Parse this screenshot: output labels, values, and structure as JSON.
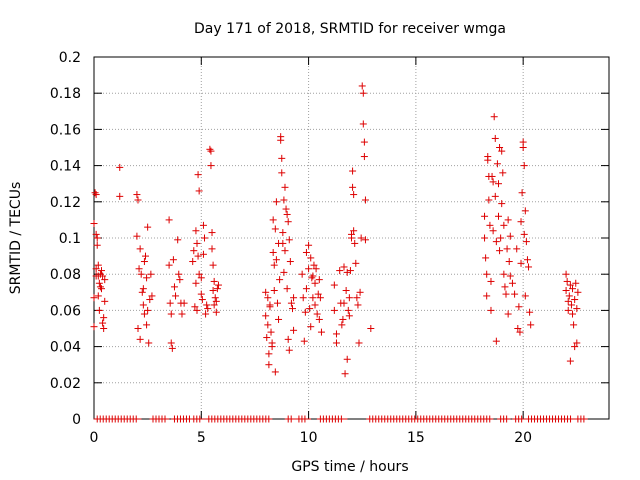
{
  "chart_data": {
    "type": "scatter",
    "title": "Day 171 of 2018, SRMTID for receiver wmga",
    "xlabel": "GPS time / hours",
    "ylabel": "SRMTID / TECUs",
    "xlim": [
      0,
      24
    ],
    "ylim": [
      0,
      0.2
    ],
    "xticks": [
      0,
      5,
      10,
      15,
      20
    ],
    "xtick_labels": [
      "0",
      "5",
      "10",
      "15",
      "20"
    ],
    "yticks": [
      0,
      0.02,
      0.04,
      0.06,
      0.08,
      0.1,
      0.12,
      0.14,
      0.16,
      0.18,
      0.2
    ],
    "ytick_labels": [
      "0",
      "0.02",
      "0.04",
      "0.06",
      "0.08",
      "0.1",
      "0.12",
      "0.14",
      "0.16",
      "0.18",
      "0.2"
    ],
    "grid": true,
    "marker": "+",
    "color": "#dd0000",
    "series": [
      {
        "name": "SRMTID",
        "points": [
          [
            0.0,
            0.108
          ],
          [
            0.0,
            0.051
          ],
          [
            0.0,
            0.067
          ],
          [
            0.05,
            0.125
          ],
          [
            0.1,
            0.124
          ],
          [
            0.1,
            0.102
          ],
          [
            0.1,
            0.083
          ],
          [
            0.1,
            0.079
          ],
          [
            0.15,
            0.1
          ],
          [
            0.15,
            0.096
          ],
          [
            0.2,
            0.085
          ],
          [
            0.2,
            0.079
          ],
          [
            0.2,
            0.068
          ],
          [
            0.25,
            0.075
          ],
          [
            0.25,
            0.06
          ],
          [
            0.3,
            0.08
          ],
          [
            0.3,
            0.073
          ],
          [
            0.35,
            0.082
          ],
          [
            0.35,
            0.072
          ],
          [
            0.4,
            0.079
          ],
          [
            0.4,
            0.053
          ],
          [
            0.45,
            0.056
          ],
          [
            0.45,
            0.05
          ],
          [
            0.5,
            0.077
          ],
          [
            0.5,
            0.065
          ],
          [
            1.2,
            0.139
          ],
          [
            1.2,
            0.123
          ],
          [
            2.0,
            0.124
          ],
          [
            2.0,
            0.101
          ],
          [
            2.05,
            0.121
          ],
          [
            2.05,
            0.05
          ],
          [
            2.1,
            0.083
          ],
          [
            2.15,
            0.094
          ],
          [
            2.15,
            0.044
          ],
          [
            2.2,
            0.08
          ],
          [
            2.25,
            0.07
          ],
          [
            2.3,
            0.072
          ],
          [
            2.3,
            0.063
          ],
          [
            2.35,
            0.087
          ],
          [
            2.35,
            0.058
          ],
          [
            2.4,
            0.09
          ],
          [
            2.45,
            0.078
          ],
          [
            2.45,
            0.052
          ],
          [
            2.5,
            0.106
          ],
          [
            2.5,
            0.06
          ],
          [
            2.55,
            0.042
          ],
          [
            2.6,
            0.066
          ],
          [
            2.65,
            0.08
          ],
          [
            2.7,
            0.068
          ],
          [
            3.5,
            0.11
          ],
          [
            3.5,
            0.085
          ],
          [
            3.55,
            0.064
          ],
          [
            3.6,
            0.058
          ],
          [
            3.6,
            0.042
          ],
          [
            3.65,
            0.039
          ],
          [
            3.7,
            0.088
          ],
          [
            3.75,
            0.073
          ],
          [
            3.8,
            0.068
          ],
          [
            3.9,
            0.099
          ],
          [
            3.95,
            0.08
          ],
          [
            4.0,
            0.077
          ],
          [
            4.05,
            0.064
          ],
          [
            4.1,
            0.058
          ],
          [
            4.2,
            0.064
          ],
          [
            4.6,
            0.087
          ],
          [
            4.65,
            0.093
          ],
          [
            4.7,
            0.062
          ],
          [
            4.75,
            0.075
          ],
          [
            4.75,
            0.104
          ],
          [
            4.8,
            0.097
          ],
          [
            4.8,
            0.06
          ],
          [
            4.85,
            0.135
          ],
          [
            4.85,
            0.09
          ],
          [
            4.9,
            0.126
          ],
          [
            4.9,
            0.08
          ],
          [
            5.0,
            0.078
          ],
          [
            5.0,
            0.069
          ],
          [
            5.05,
            0.066
          ],
          [
            5.1,
            0.091
          ],
          [
            5.1,
            0.107
          ],
          [
            5.15,
            0.1
          ],
          [
            5.2,
            0.058
          ],
          [
            5.25,
            0.063
          ],
          [
            5.3,
            0.061
          ],
          [
            5.4,
            0.149
          ],
          [
            5.45,
            0.148
          ],
          [
            5.45,
            0.14
          ],
          [
            5.5,
            0.103
          ],
          [
            5.5,
            0.094
          ],
          [
            5.55,
            0.085
          ],
          [
            5.55,
            0.071
          ],
          [
            5.6,
            0.076
          ],
          [
            5.6,
            0.063
          ],
          [
            5.65,
            0.067
          ],
          [
            5.7,
            0.065
          ],
          [
            5.7,
            0.059
          ],
          [
            5.75,
            0.072
          ],
          [
            5.8,
            0.074
          ],
          [
            8.0,
            0.07
          ],
          [
            8.0,
            0.057
          ],
          [
            8.05,
            0.045
          ],
          [
            8.1,
            0.067
          ],
          [
            8.1,
            0.052
          ],
          [
            8.15,
            0.036
          ],
          [
            8.15,
            0.03
          ],
          [
            8.2,
            0.063
          ],
          [
            8.2,
            0.062
          ],
          [
            8.25,
            0.048
          ],
          [
            8.3,
            0.042
          ],
          [
            8.3,
            0.04
          ],
          [
            8.35,
            0.092
          ],
          [
            8.35,
            0.11
          ],
          [
            8.4,
            0.085
          ],
          [
            8.4,
            0.071
          ],
          [
            8.45,
            0.105
          ],
          [
            8.45,
            0.026
          ],
          [
            8.5,
            0.088
          ],
          [
            8.5,
            0.12
          ],
          [
            8.55,
            0.064
          ],
          [
            8.6,
            0.097
          ],
          [
            8.6,
            0.055
          ],
          [
            8.65,
            0.077
          ],
          [
            8.7,
            0.156
          ],
          [
            8.7,
            0.154
          ],
          [
            8.75,
            0.144
          ],
          [
            8.75,
            0.136
          ],
          [
            8.8,
            0.097
          ],
          [
            8.8,
            0.103
          ],
          [
            8.85,
            0.121
          ],
          [
            8.85,
            0.081
          ],
          [
            8.9,
            0.128
          ],
          [
            8.9,
            0.093
          ],
          [
            8.95,
            0.116
          ],
          [
            9.0,
            0.113
          ],
          [
            9.0,
            0.072
          ],
          [
            9.05,
            0.109
          ],
          [
            9.05,
            0.044
          ],
          [
            9.1,
            0.099
          ],
          [
            9.1,
            0.038
          ],
          [
            9.15,
            0.087
          ],
          [
            9.2,
            0.064
          ],
          [
            9.25,
            0.061
          ],
          [
            9.3,
            0.067
          ],
          [
            9.3,
            0.049
          ],
          [
            9.7,
            0.08
          ],
          [
            9.75,
            0.067
          ],
          [
            9.8,
            0.043
          ],
          [
            9.85,
            0.059
          ],
          [
            9.9,
            0.092
          ],
          [
            9.9,
            0.072
          ],
          [
            10.0,
            0.096
          ],
          [
            10.0,
            0.083
          ],
          [
            10.05,
            0.061
          ],
          [
            10.1,
            0.089
          ],
          [
            10.1,
            0.051
          ],
          [
            10.15,
            0.078
          ],
          [
            10.2,
            0.079
          ],
          [
            10.2,
            0.067
          ],
          [
            10.25,
            0.085
          ],
          [
            10.3,
            0.075
          ],
          [
            10.3,
            0.063
          ],
          [
            10.35,
            0.083
          ],
          [
            10.4,
            0.058
          ],
          [
            10.45,
            0.069
          ],
          [
            10.5,
            0.077
          ],
          [
            10.5,
            0.055
          ],
          [
            10.55,
            0.067
          ],
          [
            10.6,
            0.048
          ],
          [
            11.2,
            0.074
          ],
          [
            11.2,
            0.06
          ],
          [
            11.3,
            0.047
          ],
          [
            11.3,
            0.042
          ],
          [
            11.45,
            0.082
          ],
          [
            11.5,
            0.064
          ],
          [
            11.55,
            0.052
          ],
          [
            11.6,
            0.055
          ],
          [
            11.65,
            0.084
          ],
          [
            11.65,
            0.064
          ],
          [
            11.7,
            0.025
          ],
          [
            11.75,
            0.071
          ],
          [
            11.8,
            0.081
          ],
          [
            11.8,
            0.033
          ],
          [
            11.85,
            0.06
          ],
          [
            11.9,
            0.067
          ],
          [
            11.9,
            0.057
          ],
          [
            11.95,
            0.082
          ],
          [
            12.0,
            0.102
          ],
          [
            12.0,
            0.1
          ],
          [
            12.05,
            0.137
          ],
          [
            12.05,
            0.128
          ],
          [
            12.1,
            0.124
          ],
          [
            12.1,
            0.104
          ],
          [
            12.15,
            0.097
          ],
          [
            12.2,
            0.086
          ],
          [
            12.25,
            0.067
          ],
          [
            12.3,
            0.063
          ],
          [
            12.35,
            0.042
          ],
          [
            12.4,
            0.07
          ],
          [
            12.45,
            0.1
          ],
          [
            12.5,
            0.184
          ],
          [
            12.55,
            0.18
          ],
          [
            12.55,
            0.163
          ],
          [
            12.6,
            0.153
          ],
          [
            12.6,
            0.145
          ],
          [
            12.65,
            0.121
          ],
          [
            12.65,
            0.099
          ],
          [
            12.9,
            0.05
          ],
          [
            18.2,
            0.112
          ],
          [
            18.2,
            0.1
          ],
          [
            18.25,
            0.089
          ],
          [
            18.3,
            0.08
          ],
          [
            18.3,
            0.068
          ],
          [
            18.35,
            0.143
          ],
          [
            18.35,
            0.145
          ],
          [
            18.4,
            0.134
          ],
          [
            18.4,
            0.121
          ],
          [
            18.45,
            0.107
          ],
          [
            18.5,
            0.076
          ],
          [
            18.5,
            0.06
          ],
          [
            18.55,
            0.134
          ],
          [
            18.6,
            0.131
          ],
          [
            18.6,
            0.104
          ],
          [
            18.65,
            0.167
          ],
          [
            18.7,
            0.155
          ],
          [
            18.7,
            0.123
          ],
          [
            18.75,
            0.098
          ],
          [
            18.75,
            0.043
          ],
          [
            18.8,
            0.141
          ],
          [
            18.85,
            0.13
          ],
          [
            18.85,
            0.112
          ],
          [
            18.9,
            0.15
          ],
          [
            18.9,
            0.093
          ],
          [
            18.95,
            0.1
          ],
          [
            19.0,
            0.148
          ],
          [
            19.0,
            0.119
          ],
          [
            19.05,
            0.136
          ],
          [
            19.1,
            0.107
          ],
          [
            19.1,
            0.08
          ],
          [
            19.15,
            0.073
          ],
          [
            19.2,
            0.069
          ],
          [
            19.25,
            0.094
          ],
          [
            19.3,
            0.11
          ],
          [
            19.3,
            0.058
          ],
          [
            19.35,
            0.087
          ],
          [
            19.4,
            0.101
          ],
          [
            19.4,
            0.079
          ],
          [
            19.5,
            0.075
          ],
          [
            19.6,
            0.069
          ],
          [
            19.7,
            0.094
          ],
          [
            19.75,
            0.05
          ],
          [
            19.8,
            0.062
          ],
          [
            19.85,
            0.048
          ],
          [
            19.9,
            0.109
          ],
          [
            19.9,
            0.086
          ],
          [
            19.95,
            0.125
          ],
          [
            20.0,
            0.153
          ],
          [
            20.0,
            0.15
          ],
          [
            20.05,
            0.14
          ],
          [
            20.05,
            0.102
          ],
          [
            20.1,
            0.115
          ],
          [
            20.1,
            0.068
          ],
          [
            20.15,
            0.098
          ],
          [
            20.2,
            0.088
          ],
          [
            20.25,
            0.084
          ],
          [
            20.3,
            0.059
          ],
          [
            20.35,
            0.052
          ],
          [
            22.0,
            0.08
          ],
          [
            22.0,
            0.071
          ],
          [
            22.05,
            0.076
          ],
          [
            22.1,
            0.065
          ],
          [
            22.1,
            0.06
          ],
          [
            22.15,
            0.068
          ],
          [
            22.2,
            0.074
          ],
          [
            22.2,
            0.032
          ],
          [
            22.25,
            0.063
          ],
          [
            22.3,
            0.058
          ],
          [
            22.3,
            0.072
          ],
          [
            22.35,
            0.052
          ],
          [
            22.4,
            0.066
          ],
          [
            22.4,
            0.04
          ],
          [
            22.45,
            0.075
          ],
          [
            22.5,
            0.061
          ],
          [
            22.5,
            0.042
          ],
          [
            22.55,
            0.07
          ]
        ],
        "zero_segments": [
          [
            0.15,
            2.05
          ],
          [
            2.75,
            3.35
          ],
          [
            3.75,
            4.45
          ],
          [
            4.65,
            5.05
          ],
          [
            5.35,
            8.15
          ],
          [
            9.05,
            9.25
          ],
          [
            9.55,
            9.95
          ],
          [
            10.55,
            11.65
          ],
          [
            12.85,
            18.45
          ],
          [
            18.95,
            19.25
          ],
          [
            19.65,
            19.95
          ],
          [
            20.25,
            22.25
          ],
          [
            22.55,
            22.85
          ]
        ]
      }
    ]
  }
}
